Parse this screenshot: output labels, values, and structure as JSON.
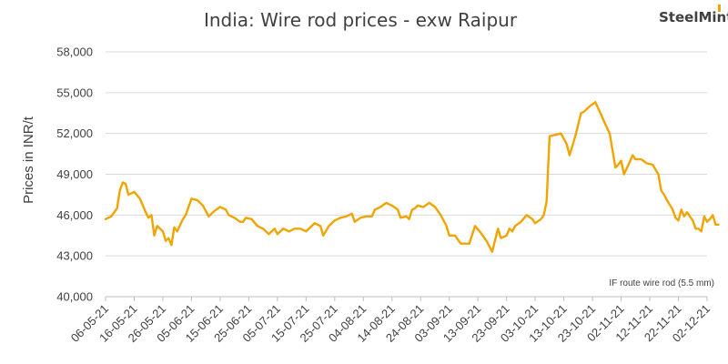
{
  "chart_data": {
    "type": "line",
    "title": "India: Wire rod prices - exw Raipur",
    "ylabel": "Prices in INR/t",
    "xlabel": "",
    "annotation": "IF route wire rod (5.5 mm)",
    "brand": {
      "text": "SteelMint",
      "color": "#f0a400"
    },
    "ylim": [
      40000,
      58000
    ],
    "yticks": [
      40000,
      43000,
      46000,
      49000,
      52000,
      55000,
      58000
    ],
    "ytick_labels": [
      "40,000",
      "43,000",
      "46,000",
      "49,000",
      "52,000",
      "55,000",
      "58,000"
    ],
    "xlim": [
      "2021-05-06",
      "2021-12-02"
    ],
    "xtick_labels": [
      "06-05-21",
      "16-05-21",
      "26-05-21",
      "05-06-21",
      "15-06-21",
      "25-06-21",
      "05-07-21",
      "15-07-21",
      "25-07-21",
      "04-08-21",
      "14-08-21",
      "24-08-21",
      "03-09-21",
      "13-09-21",
      "23-09-21",
      "03-10-21",
      "13-10-21",
      "23-10-21",
      "02-11-21",
      "12-11-21",
      "22-11-21",
      "02-12-21"
    ],
    "grid": {
      "y": true,
      "x": false
    },
    "series_color": "#f0a400",
    "series": [
      {
        "name": "",
        "points": [
          [
            "2021-05-06",
            45700
          ],
          [
            "2021-05-08",
            45900
          ],
          [
            "2021-05-10",
            46500
          ],
          [
            "2021-05-11",
            47800
          ],
          [
            "2021-05-12",
            48400
          ],
          [
            "2021-05-13",
            48300
          ],
          [
            "2021-05-14",
            47500
          ],
          [
            "2021-05-16",
            47700
          ],
          [
            "2021-05-18",
            47200
          ],
          [
            "2021-05-20",
            46200
          ],
          [
            "2021-05-21",
            45800
          ],
          [
            "2021-05-22",
            46000
          ],
          [
            "2021-05-23",
            44500
          ],
          [
            "2021-05-24",
            45200
          ],
          [
            "2021-05-26",
            44800
          ],
          [
            "2021-05-27",
            44100
          ],
          [
            "2021-05-28",
            44300
          ],
          [
            "2021-05-29",
            43800
          ],
          [
            "2021-05-30",
            45100
          ],
          [
            "2021-05-31",
            44800
          ],
          [
            "2021-06-02",
            45700
          ],
          [
            "2021-06-03",
            46000
          ],
          [
            "2021-06-05",
            47200
          ],
          [
            "2021-06-07",
            47100
          ],
          [
            "2021-06-09",
            46700
          ],
          [
            "2021-06-11",
            45900
          ],
          [
            "2021-06-13",
            46300
          ],
          [
            "2021-06-15",
            46600
          ],
          [
            "2021-06-17",
            46400
          ],
          [
            "2021-06-18",
            46000
          ],
          [
            "2021-06-20",
            45800
          ],
          [
            "2021-06-22",
            45500
          ],
          [
            "2021-06-23",
            45500
          ],
          [
            "2021-06-24",
            45800
          ],
          [
            "2021-06-26",
            45700
          ],
          [
            "2021-06-28",
            45200
          ],
          [
            "2021-06-30",
            45000
          ],
          [
            "2021-07-02",
            44600
          ],
          [
            "2021-07-04",
            45000
          ],
          [
            "2021-07-05",
            44600
          ],
          [
            "2021-07-07",
            45000
          ],
          [
            "2021-07-09",
            44800
          ],
          [
            "2021-07-11",
            45000
          ],
          [
            "2021-07-13",
            45000
          ],
          [
            "2021-07-15",
            44800
          ],
          [
            "2021-07-17",
            45200
          ],
          [
            "2021-07-18",
            45400
          ],
          [
            "2021-07-20",
            45200
          ],
          [
            "2021-07-21",
            44500
          ],
          [
            "2021-07-23",
            45200
          ],
          [
            "2021-07-25",
            45600
          ],
          [
            "2021-07-27",
            45800
          ],
          [
            "2021-07-29",
            45900
          ],
          [
            "2021-07-31",
            46100
          ],
          [
            "2021-08-01",
            45500
          ],
          [
            "2021-08-03",
            45800
          ],
          [
            "2021-08-05",
            45900
          ],
          [
            "2021-08-07",
            45900
          ],
          [
            "2021-08-08",
            46400
          ],
          [
            "2021-08-10",
            46600
          ],
          [
            "2021-08-12",
            46900
          ],
          [
            "2021-08-14",
            46700
          ],
          [
            "2021-08-16",
            46400
          ],
          [
            "2021-08-17",
            45800
          ],
          [
            "2021-08-19",
            45900
          ],
          [
            "2021-08-20",
            45700
          ],
          [
            "2021-08-21",
            46400
          ],
          [
            "2021-08-22",
            46500
          ],
          [
            "2021-08-23",
            46700
          ],
          [
            "2021-08-25",
            46600
          ],
          [
            "2021-08-27",
            46900
          ],
          [
            "2021-08-29",
            46600
          ],
          [
            "2021-08-31",
            46000
          ],
          [
            "2021-09-02",
            45200
          ],
          [
            "2021-09-03",
            44500
          ],
          [
            "2021-09-05",
            44500
          ],
          [
            "2021-09-07",
            43900
          ],
          [
            "2021-09-09",
            43900
          ],
          [
            "2021-09-10",
            43900
          ],
          [
            "2021-09-12",
            45200
          ],
          [
            "2021-09-14",
            44700
          ],
          [
            "2021-09-16",
            44100
          ],
          [
            "2021-09-18",
            43300
          ],
          [
            "2021-09-20",
            45000
          ],
          [
            "2021-09-21",
            44300
          ],
          [
            "2021-09-23",
            44500
          ],
          [
            "2021-09-24",
            45000
          ],
          [
            "2021-09-25",
            44800
          ],
          [
            "2021-09-26",
            45200
          ],
          [
            "2021-09-28",
            45500
          ],
          [
            "2021-09-30",
            46000
          ],
          [
            "2021-10-02",
            45700
          ],
          [
            "2021-10-03",
            45400
          ],
          [
            "2021-10-05",
            45700
          ],
          [
            "2021-10-06",
            46000
          ],
          [
            "2021-10-07",
            47000
          ],
          [
            "2021-10-08",
            51800
          ],
          [
            "2021-10-10",
            51900
          ],
          [
            "2021-10-12",
            52000
          ],
          [
            "2021-10-14",
            51200
          ],
          [
            "2021-10-15",
            50400
          ],
          [
            "2021-10-17",
            51800
          ],
          [
            "2021-10-19",
            53500
          ],
          [
            "2021-10-20",
            53600
          ],
          [
            "2021-10-22",
            54000
          ],
          [
            "2021-10-24",
            54300
          ],
          [
            "2021-10-26",
            53400
          ],
          [
            "2021-10-27",
            52900
          ],
          [
            "2021-10-29",
            52000
          ],
          [
            "2021-10-31",
            49500
          ],
          [
            "2021-11-01",
            49700
          ],
          [
            "2021-11-02",
            50000
          ],
          [
            "2021-11-03",
            49000
          ],
          [
            "2021-11-05",
            49900
          ],
          [
            "2021-11-06",
            50400
          ],
          [
            "2021-11-07",
            50100
          ],
          [
            "2021-11-09",
            50100
          ],
          [
            "2021-11-11",
            49800
          ],
          [
            "2021-11-13",
            49700
          ],
          [
            "2021-11-15",
            49000
          ],
          [
            "2021-11-16",
            47800
          ],
          [
            "2021-11-17",
            47500
          ],
          [
            "2021-11-18",
            47100
          ],
          [
            "2021-11-20",
            46400
          ],
          [
            "2021-11-21",
            45800
          ],
          [
            "2021-11-22",
            45600
          ],
          [
            "2021-11-23",
            46400
          ],
          [
            "2021-11-24",
            45900
          ],
          [
            "2021-11-25",
            46200
          ],
          [
            "2021-11-27",
            45600
          ],
          [
            "2021-11-28",
            45000
          ],
          [
            "2021-11-29",
            45000
          ],
          [
            "2021-11-30",
            44800
          ],
          [
            "2021-12-01",
            45900
          ],
          [
            "2021-12-02",
            45500
          ],
          [
            "2021-12-03",
            45700
          ],
          [
            "2021-12-04",
            46000
          ],
          [
            "2021-12-05",
            45300
          ],
          [
            "2021-12-06",
            45300
          ]
        ]
      }
    ]
  }
}
